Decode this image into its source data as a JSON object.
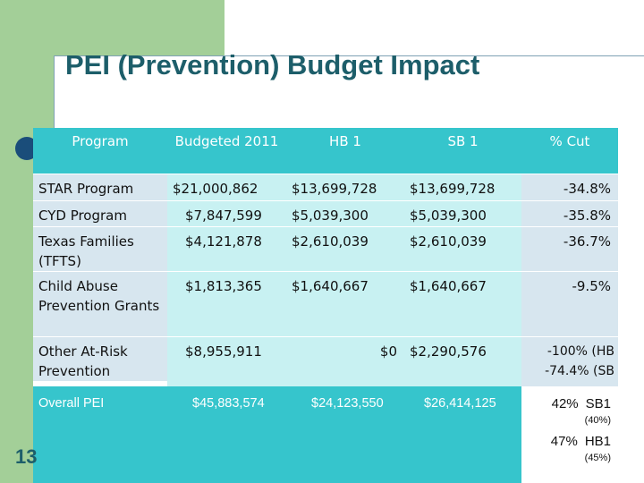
{
  "slide": {
    "title": "PEI (Prevention) Budget Impact",
    "number": "13"
  },
  "table": {
    "headers": {
      "program": "Program",
      "budgeted": "Budgeted 2011",
      "hb1": "HB 1",
      "sb1": "SB 1",
      "cut": "% Cut"
    },
    "rows": [
      {
        "program": "STAR Program",
        "budgeted": "$21,000,862",
        "hb1": "$13,699,728",
        "sb1": "$13,699,728",
        "cut": "-34.8%"
      },
      {
        "program": "CYD Program",
        "budgeted": "$7,847,599",
        "hb1": "$5,039,300",
        "sb1": "$5,039,300",
        "cut": "-35.8%"
      },
      {
        "program": "Texas Families (TFTS)",
        "budgeted": "$4,121,878",
        "hb1": "$2,610,039",
        "sb1": "$2,610,039",
        "cut": "-36.7%"
      },
      {
        "program": "Child Abuse Prevention Grants",
        "budgeted": "$1,813,365",
        "hb1": "$1,640,667",
        "sb1": "$1,640,667",
        "cut": "-9.5%"
      },
      {
        "program": "Other At-Risk Prevention",
        "budgeted": "$8,955,911",
        "hb1": "$0",
        "sb1": "$2,290,576",
        "cut": "-100% (HB -74.4% (SB"
      }
    ],
    "total": {
      "program": "Overall PEI",
      "budgeted": "$45,883,574",
      "hb1": "$24,123,550",
      "sb1": "$26,414,125",
      "cut": {
        "sb1_pct": "42%",
        "sb1_label": "SB1",
        "sb1_note": "(40%)",
        "hb1_pct": "47%",
        "hb1_label": "HB1",
        "hb1_note": "(45%)"
      }
    }
  },
  "colors": {
    "header_bg": "#36c5cc",
    "light_col": "#d7e6ef",
    "value_col": "#c8f1f2",
    "title": "#1d5e6a",
    "decor_green": "#a3cf98",
    "bullet": "#1a4d7a"
  }
}
